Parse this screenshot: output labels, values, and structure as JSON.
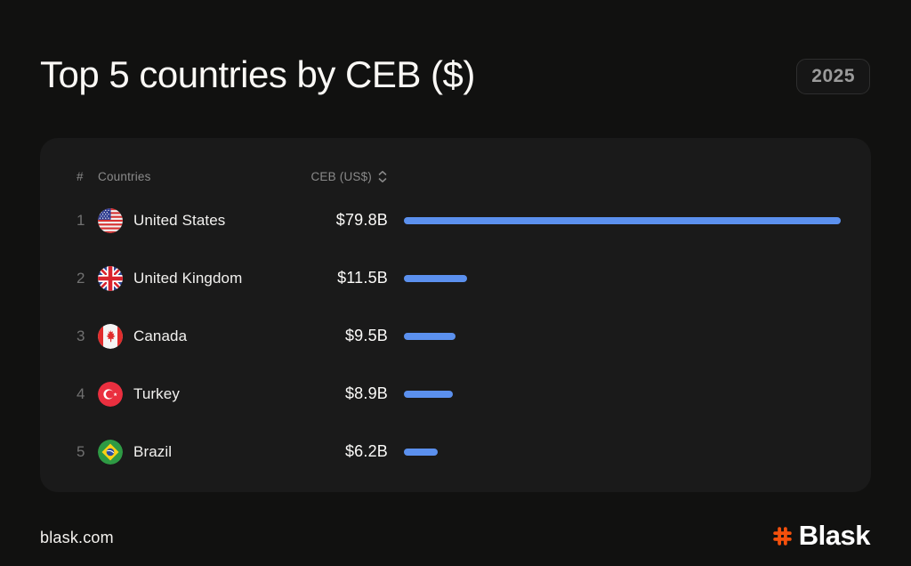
{
  "title": "Top 5 countries by CEB ($)",
  "badge": {
    "year": "2025"
  },
  "table": {
    "headers": {
      "rank": "#",
      "country": "Countries",
      "value": "CEB (US$)"
    },
    "sort_icon": "sort-chevrons-icon",
    "max_value": 79.8,
    "rows": [
      {
        "rank": "1",
        "country": "United States",
        "value": "$79.8B",
        "value_num": 79.8,
        "flag_icon": "flag-united-states-icon"
      },
      {
        "rank": "2",
        "country": "United Kingdom",
        "value": "$11.5B",
        "value_num": 11.5,
        "flag_icon": "flag-united-kingdom-icon"
      },
      {
        "rank": "3",
        "country": "Canada",
        "value": "$9.5B",
        "value_num": 9.5,
        "flag_icon": "flag-canada-icon"
      },
      {
        "rank": "4",
        "country": "Turkey",
        "value": "$8.9B",
        "value_num": 8.9,
        "flag_icon": "flag-turkey-icon"
      },
      {
        "rank": "5",
        "country": "Brazil",
        "value": "$6.2B",
        "value_num": 6.2,
        "flag_icon": "flag-brazil-icon"
      }
    ]
  },
  "footer": {
    "site": "blask.com",
    "brand": "Blask",
    "brand_icon": "hash-icon"
  },
  "colors": {
    "page_bg": "#111110",
    "card_bg": "#1a1a1a",
    "accent_blue": "#5b90ee",
    "brand_orange": "#f4500c",
    "text_primary": "#f2f1ef",
    "text_muted": "#8a8a8a"
  },
  "chart_data": {
    "type": "bar",
    "orientation": "horizontal",
    "title": "Top 5 countries by CEB ($)",
    "year": "2025",
    "categories": [
      "United States",
      "United Kingdom",
      "Canada",
      "Turkey",
      "Brazil"
    ],
    "values": [
      79.8,
      11.5,
      9.5,
      8.9,
      6.2
    ],
    "value_labels": [
      "$79.8B",
      "$11.5B",
      "$9.5B",
      "$8.9B",
      "$6.2B"
    ],
    "unit": "US$ billions",
    "xlim": [
      0,
      79.8
    ],
    "grid": false,
    "legend": false,
    "bar_color": "#5b90ee"
  }
}
